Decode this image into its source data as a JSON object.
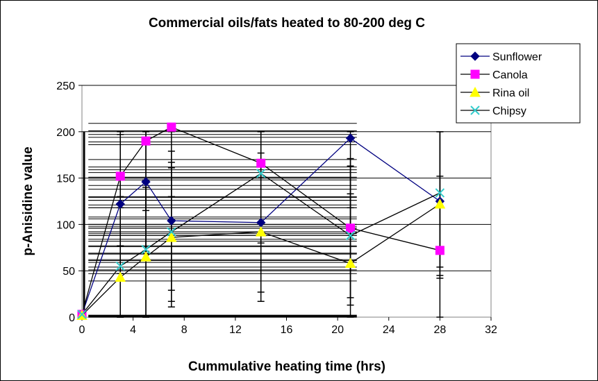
{
  "chart_data": {
    "type": "line",
    "title": "Commercial oils/fats heated to 80-200 deg C",
    "xlabel": "Cummulative heating time (hrs)",
    "ylabel": "p-Anisidine value",
    "xlim": [
      0,
      32
    ],
    "ylim": [
      0,
      250
    ],
    "xticks": [
      0,
      4,
      8,
      12,
      16,
      20,
      24,
      28,
      32
    ],
    "yticks": [
      0,
      50,
      100,
      150,
      200,
      250
    ],
    "grid": "horizontal",
    "legend_position": "top-right",
    "series": [
      {
        "name": "Sunflower",
        "color": "#000080",
        "marker": "diamond",
        "x": [
          0,
          3,
          5,
          7,
          14,
          21,
          28
        ],
        "y": [
          3,
          122,
          146,
          104,
          102,
          193,
          125
        ]
      },
      {
        "name": "Canola",
        "color": "#ff00ff",
        "marker": "square",
        "x": [
          0,
          3,
          5,
          7,
          14,
          21,
          28
        ],
        "y": [
          3,
          152,
          190,
          205,
          166,
          96,
          72
        ]
      },
      {
        "name": "Rina oil",
        "color": "#ffff00",
        "marker": "triangle",
        "x": [
          0,
          3,
          5,
          7,
          14,
          21,
          28
        ],
        "y": [
          2,
          43,
          65,
          86,
          92,
          58,
          122
        ]
      },
      {
        "name": "Chipsy",
        "color": "#33cccc",
        "marker": "x",
        "x": [
          0,
          3,
          5,
          7,
          14,
          21,
          28
        ],
        "y": [
          3,
          55,
          73,
          92,
          155,
          88,
          134
        ]
      }
    ]
  }
}
